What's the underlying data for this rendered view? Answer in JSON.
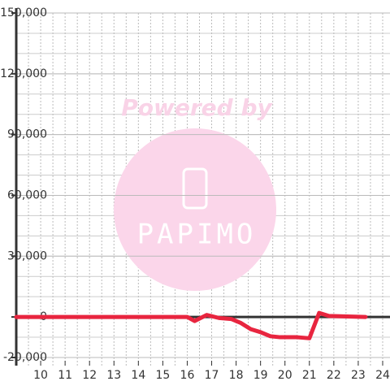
{
  "chart_data": {
    "type": "line",
    "watermark": {
      "line1": "Powered by",
      "line2": "PAPIMO"
    },
    "x": [
      9,
      16,
      16.3,
      16.8,
      17.3,
      17.8,
      18.2,
      18.6,
      19.0,
      19.4,
      19.8,
      20.5,
      21.0,
      21.4,
      21.8,
      23.3
    ],
    "series": [
      {
        "color": "#e8253f",
        "values": [
          0,
          0,
          -2000,
          1000,
          -500,
          -1000,
          -3000,
          -6000,
          -7500,
          -9500,
          -10000,
          -10000,
          -10500,
          2000,
          500,
          0
        ]
      }
    ],
    "xlim": [
      9,
      24.3
    ],
    "xticks": [
      10,
      11,
      12,
      13,
      14,
      15,
      16,
      17,
      18,
      19,
      20,
      21,
      22,
      23,
      24
    ],
    "ylim": [
      -20000,
      150000
    ],
    "yticks": [
      {
        "value": -20000,
        "label": "-20,000"
      },
      0,
      {
        "value": 30000,
        "label": "30,000"
      },
      {
        "value": 60000,
        "label": "60,000"
      },
      {
        "value": 90000,
        "label": "90,000"
      },
      {
        "value": 120000,
        "label": "120,000"
      },
      {
        "value": 150000,
        "label": "150,000"
      }
    ],
    "grid": true
  }
}
